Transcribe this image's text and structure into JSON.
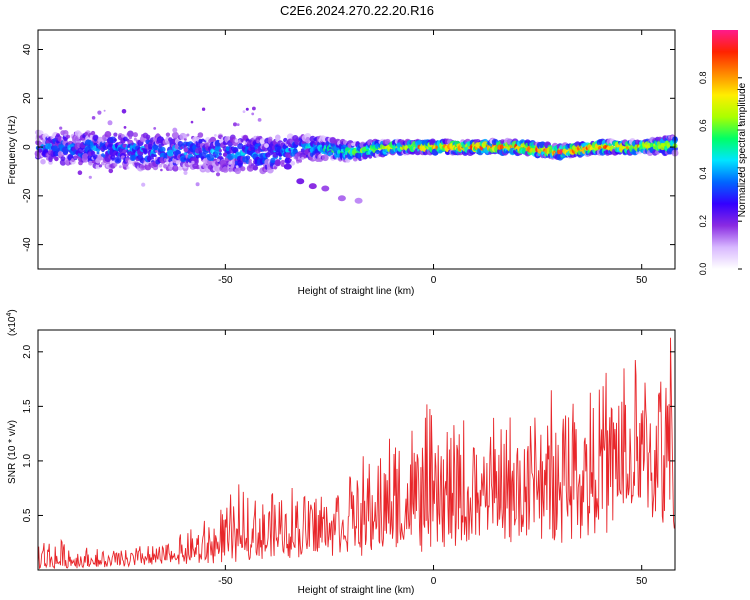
{
  "title": "C2E6.2024.270.22.20.R16",
  "chart_data": [
    {
      "type": "heatmap",
      "xlabel": "Height of straight line (km)",
      "ylabel": "Frequency (Hz)",
      "xlim": [
        -95,
        58
      ],
      "ylim": [
        -50,
        48
      ],
      "xticks": [
        -50,
        0,
        50
      ],
      "yticks": [
        -40,
        -20,
        0,
        20,
        40
      ],
      "ytick_labels": [
        "-40",
        "-20",
        "0",
        "20",
        "40"
      ],
      "colorbar": {
        "label": "Normalized spectral amplitude",
        "range": [
          0.0,
          1.0
        ],
        "ticks": [
          0.0,
          0.2,
          0.4,
          0.6,
          0.8
        ],
        "tick_labels": [
          "0.0",
          "0.2",
          "0.4",
          "0.6",
          "0.8"
        ],
        "colormap": [
          "#ffffff",
          "#d8b8ff",
          "#8a2be2",
          "#3300ff",
          "#0066ff",
          "#00e5ff",
          "#00ff66",
          "#aaff00",
          "#ffee00",
          "#ff8800",
          "#ff2200",
          "#ff1a8c"
        ]
      },
      "band": {
        "x": [
          -95,
          -80,
          -60,
          -40,
          -30,
          -20,
          -10,
          0,
          10,
          20,
          30,
          40,
          50,
          58
        ],
        "center_hz": [
          0,
          -1,
          -2,
          -3,
          0,
          -2,
          0,
          0,
          0,
          0,
          -2,
          0,
          0,
          1
        ],
        "halfwidth_hz": [
          5,
          6,
          6,
          6,
          4,
          3,
          2,
          2,
          2,
          2,
          2,
          2,
          2,
          3
        ],
        "amplitude": [
          0.3,
          0.35,
          0.35,
          0.35,
          0.4,
          0.55,
          0.7,
          0.8,
          0.85,
          0.9,
          0.9,
          0.85,
          0.8,
          0.6
        ]
      },
      "tail": {
        "x": [
          -35,
          -32,
          -29,
          -26,
          -22,
          -18
        ],
        "y": [
          -8,
          -14,
          -16,
          -17,
          -21,
          -22
        ]
      }
    },
    {
      "type": "line",
      "xlabel": "Height of straight line (km)",
      "ylabel": "SNR (10 * v/v)",
      "scale_label": "(x10",
      "scale_exponent": "4",
      "scale_suffix": ")",
      "xlim": [
        -95,
        58
      ],
      "ylim": [
        0,
        2.2
      ],
      "xticks": [
        -50,
        0,
        50
      ],
      "yticks": [
        0.5,
        1.0,
        1.5,
        2.0
      ],
      "ytick_labels": [
        "0.5",
        "1.0",
        "1.5",
        "2.0"
      ],
      "series": [
        {
          "color": "#e8262a",
          "envelope": {
            "x": [
              -95,
              -80,
              -65,
              -55,
              -45,
              -35,
              -25,
              -15,
              -5,
              5,
              15,
              25,
              35,
              45,
              55,
              58
            ],
            "base": [
              0.02,
              0.05,
              0.08,
              0.12,
              0.18,
              0.22,
              0.28,
              0.32,
              0.38,
              0.42,
              0.5,
              0.58,
              0.65,
              0.7,
              0.75,
              0.75
            ],
            "peak": [
              0.35,
              0.18,
              0.25,
              0.45,
              0.8,
              0.78,
              0.85,
              1.05,
              1.45,
              1.4,
              1.35,
              1.55,
              1.75,
              1.9,
              2.2,
              2.2
            ]
          }
        }
      ]
    }
  ]
}
